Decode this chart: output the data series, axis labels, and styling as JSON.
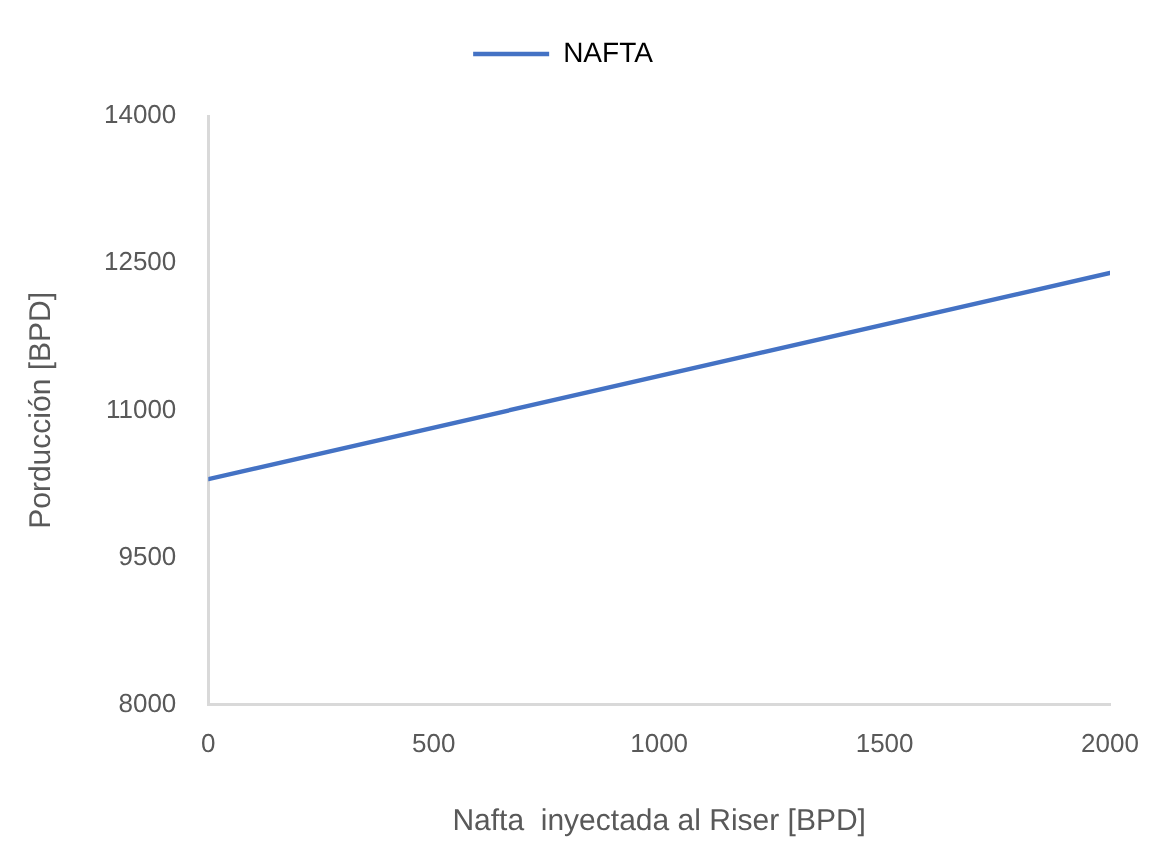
{
  "chart_data": {
    "type": "line",
    "xlabel": "Nafta  inyectada al Riser [BPD]",
    "ylabel": "Porducción [BPD]",
    "x": [
      0,
      2000
    ],
    "series": [
      {
        "name": "NAFTA",
        "color": "#4472c4",
        "values": [
          10300,
          12400
        ]
      }
    ],
    "xlim": [
      0,
      2000
    ],
    "xticks": [
      0,
      500,
      1000,
      1500,
      2000
    ],
    "ylim": [
      8000,
      14000
    ],
    "yticks": [
      8000,
      9500,
      11000,
      12500,
      14000
    ],
    "grid": false,
    "legend": "top",
    "marker": "none",
    "line_style": "solid"
  }
}
